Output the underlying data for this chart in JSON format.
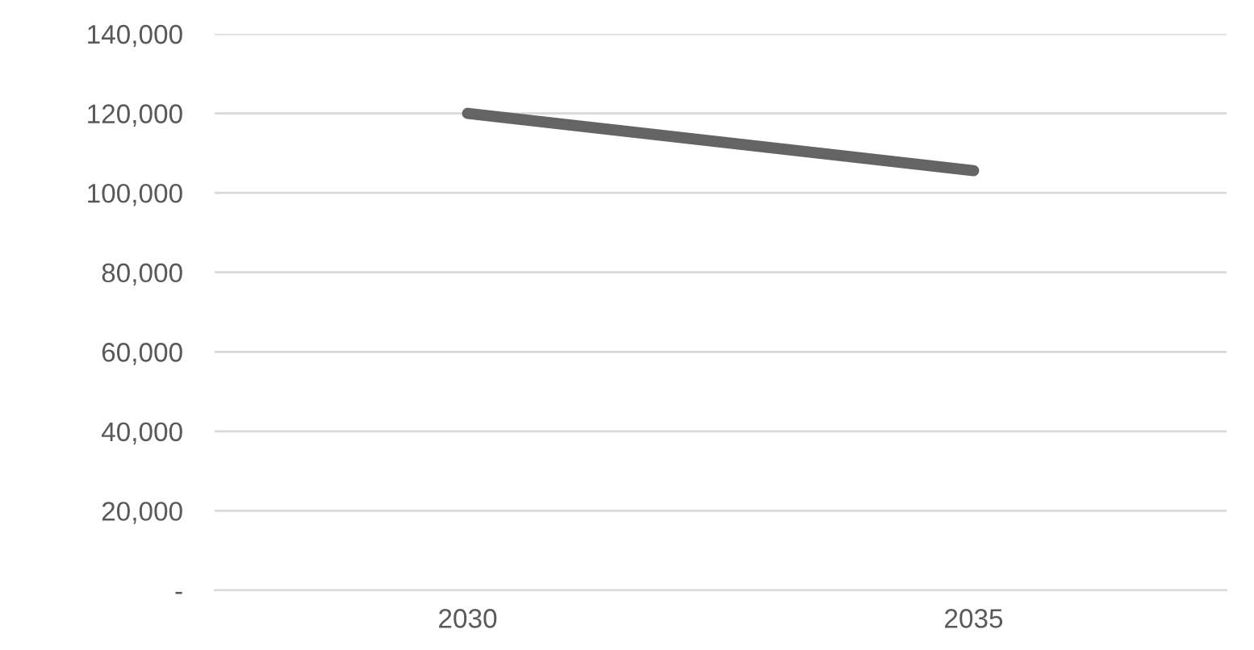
{
  "chart_data": {
    "type": "line",
    "categories": [
      "2030",
      "2035"
    ],
    "series": [
      {
        "color": "#646464",
        "values": [
          120000,
          105600
        ]
      }
    ],
    "ylim": [
      0,
      140000
    ],
    "yticks": [
      {
        "value": 0,
        "label": "-"
      },
      {
        "value": 20000,
        "label": "20,000"
      },
      {
        "value": 40000,
        "label": "40,000"
      },
      {
        "value": 60000,
        "label": "60,000"
      },
      {
        "value": 80000,
        "label": "80,000"
      },
      {
        "value": 100000,
        "label": "100,000"
      },
      {
        "value": 120000,
        "label": "120,000"
      },
      {
        "value": 140000,
        "label": "140,000"
      }
    ],
    "grid": "y",
    "marker": "none",
    "line_style": "solid"
  }
}
